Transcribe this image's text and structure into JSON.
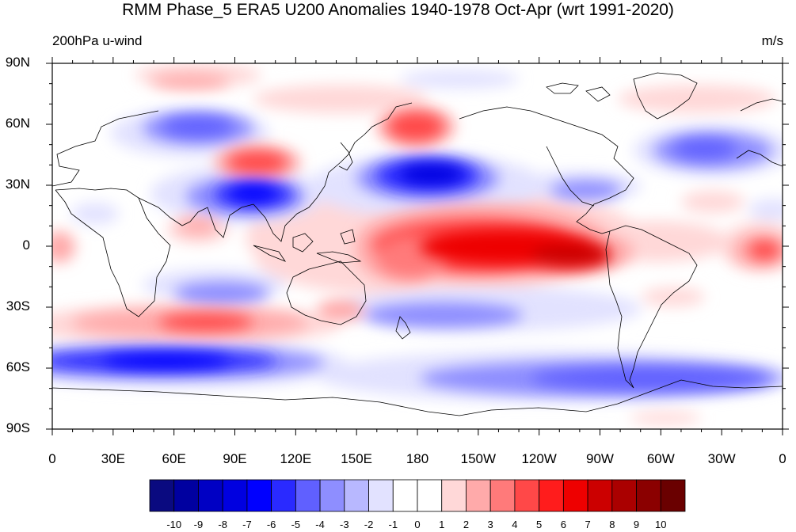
{
  "title": "RMM Phase_5 ERA5 U200 Anomalies 1940-1978 Oct-Apr (wrt 1991-2020)",
  "left_string": "200hPa u-wind",
  "right_string": "m/s",
  "lat_labels": [
    "90N",
    "60N",
    "30N",
    "0",
    "30S",
    "60S",
    "90S"
  ],
  "lon_labels": [
    "0",
    "30E",
    "60E",
    "90E",
    "120E",
    "150E",
    "180",
    "150W",
    "120W",
    "90W",
    "60W",
    "30W",
    "0"
  ],
  "colorbar": {
    "labels": [
      "-10",
      "-9",
      "-8",
      "-7",
      "-6",
      "-5",
      "-4",
      "-3",
      "-2",
      "-1",
      "0",
      "1",
      "2",
      "3",
      "4",
      "5",
      "6",
      "7",
      "8",
      "9",
      "10"
    ],
    "colors": [
      "#0a0a80",
      "#0000a0",
      "#0000c4",
      "#0000e0",
      "#0000ff",
      "#2a2aff",
      "#6060ff",
      "#8e8eff",
      "#b8b8ff",
      "#e2e2ff",
      "#ffffff",
      "#ffffff",
      "#ffd8d8",
      "#ffaaaa",
      "#ff7a7a",
      "#ff4848",
      "#ff1c1c",
      "#ee0000",
      "#cc0000",
      "#aa0000",
      "#8b0000",
      "#6a0000"
    ]
  }
}
